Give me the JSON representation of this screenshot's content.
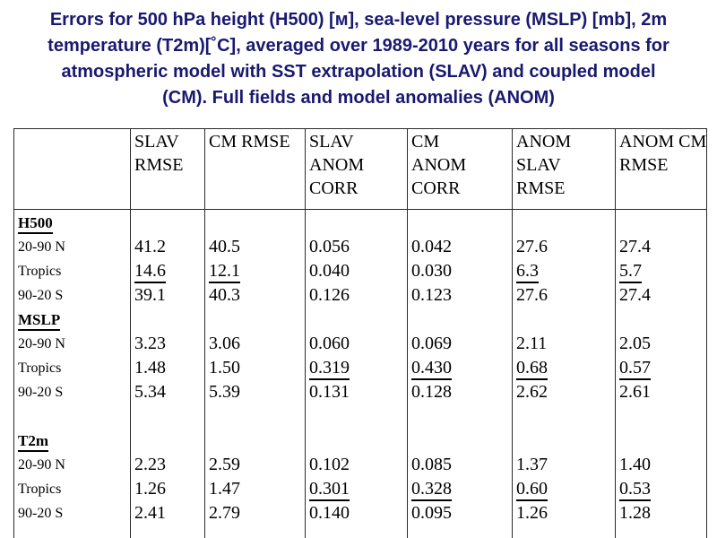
{
  "slide": {
    "background": "#ffffff",
    "title_color": "#191970",
    "title_lines": [
      "Errors for 500 hPa height (H500) [м], sea-level pressure (MSLP) [mb], 2m",
      "temperature (T2m)[˚C], averaged over 1989-2010 years for all seasons for",
      "atmospheric model with SST extrapolation (SLAV) and coupled model",
      "(CM). Full fields and model anomalies (ANOM)"
    ]
  },
  "table": {
    "border_color": "#2a2a2a",
    "header": [
      {
        "label": "",
        "lines": []
      },
      {
        "label": "SLAV RMSE",
        "lines": [
          "SLAV",
          "RMSE"
        ]
      },
      {
        "label": "CM RMSE",
        "lines": [
          "CM RMSE"
        ]
      },
      {
        "label": "SLAV ANOM CORR",
        "lines": [
          "SLAV",
          "ANOM",
          "CORR"
        ]
      },
      {
        "label": "CM ANOM CORR",
        "lines": [
          "CM",
          "ANOM",
          "CORR"
        ]
      },
      {
        "label": "ANOM SLAV RMSE",
        "lines": [
          "ANOM",
          "SLAV",
          "RMSE"
        ]
      },
      {
        "label": "ANOM CM RMSE",
        "lines": [
          "ANOM CM",
          "RMSE"
        ]
      }
    ],
    "body_lines": [
      {
        "label": "H500",
        "style": "section",
        "values": [
          "",
          "",
          "",
          "",
          "",
          ""
        ],
        "underline_cols": []
      },
      {
        "label": "20-90 N",
        "style": "region",
        "values": [
          "41.2",
          "40.5",
          "0.056",
          "0.042",
          "27.6",
          "27.4"
        ],
        "underline_cols": []
      },
      {
        "label": "Tropics",
        "style": "region",
        "values": [
          "14.6",
          "12.1",
          "0.040",
          "0.030",
          "6.3",
          "5.7"
        ],
        "underline_cols": [
          0,
          1,
          4,
          5
        ]
      },
      {
        "label": "90-20 S",
        "style": "region",
        "values": [
          "39.1",
          "40.3",
          "0.126",
          "0.123",
          "27.6",
          "27.4"
        ],
        "underline_cols": []
      },
      {
        "label": "MSLP",
        "style": "section",
        "values": [
          "",
          "",
          "",
          "",
          "",
          ""
        ],
        "underline_cols": []
      },
      {
        "label": "20-90 N",
        "style": "region",
        "values": [
          "3.23",
          "3.06",
          "0.060",
          "0.069",
          "2.11",
          "2.05"
        ],
        "underline_cols": []
      },
      {
        "label": "Tropics",
        "style": "region",
        "values": [
          "1.48",
          "1.50",
          "0.319",
          "0.430",
          "0.68",
          "0.57"
        ],
        "underline_cols": [
          2,
          3,
          4,
          5
        ]
      },
      {
        "label": "90-20 S",
        "style": "region",
        "values": [
          "5.34",
          "5.39",
          "0.131",
          "0.128",
          "2.62",
          "2.61"
        ],
        "underline_cols": []
      },
      {
        "label": "",
        "style": "blank",
        "values": [
          "",
          "",
          "",
          "",
          "",
          ""
        ],
        "underline_cols": []
      },
      {
        "label": "T2m",
        "style": "section",
        "values": [
          "",
          "",
          "",
          "",
          "",
          ""
        ],
        "underline_cols": []
      },
      {
        "label": "20-90 N",
        "style": "region",
        "values": [
          "2.23",
          "2.59",
          "0.102",
          "0.085",
          "1.37",
          "1.40"
        ],
        "underline_cols": []
      },
      {
        "label": "Tropics",
        "style": "region",
        "values": [
          "1.26",
          "1.47",
          "0.301",
          "0.328",
          "0.60",
          "0.53"
        ],
        "underline_cols": [
          2,
          3,
          4,
          5
        ]
      },
      {
        "label": "90-20 S",
        "style": "region",
        "values": [
          "2.41",
          "2.79",
          "0.140",
          "0.095",
          "1.26",
          "1.28"
        ],
        "underline_cols": []
      }
    ]
  }
}
